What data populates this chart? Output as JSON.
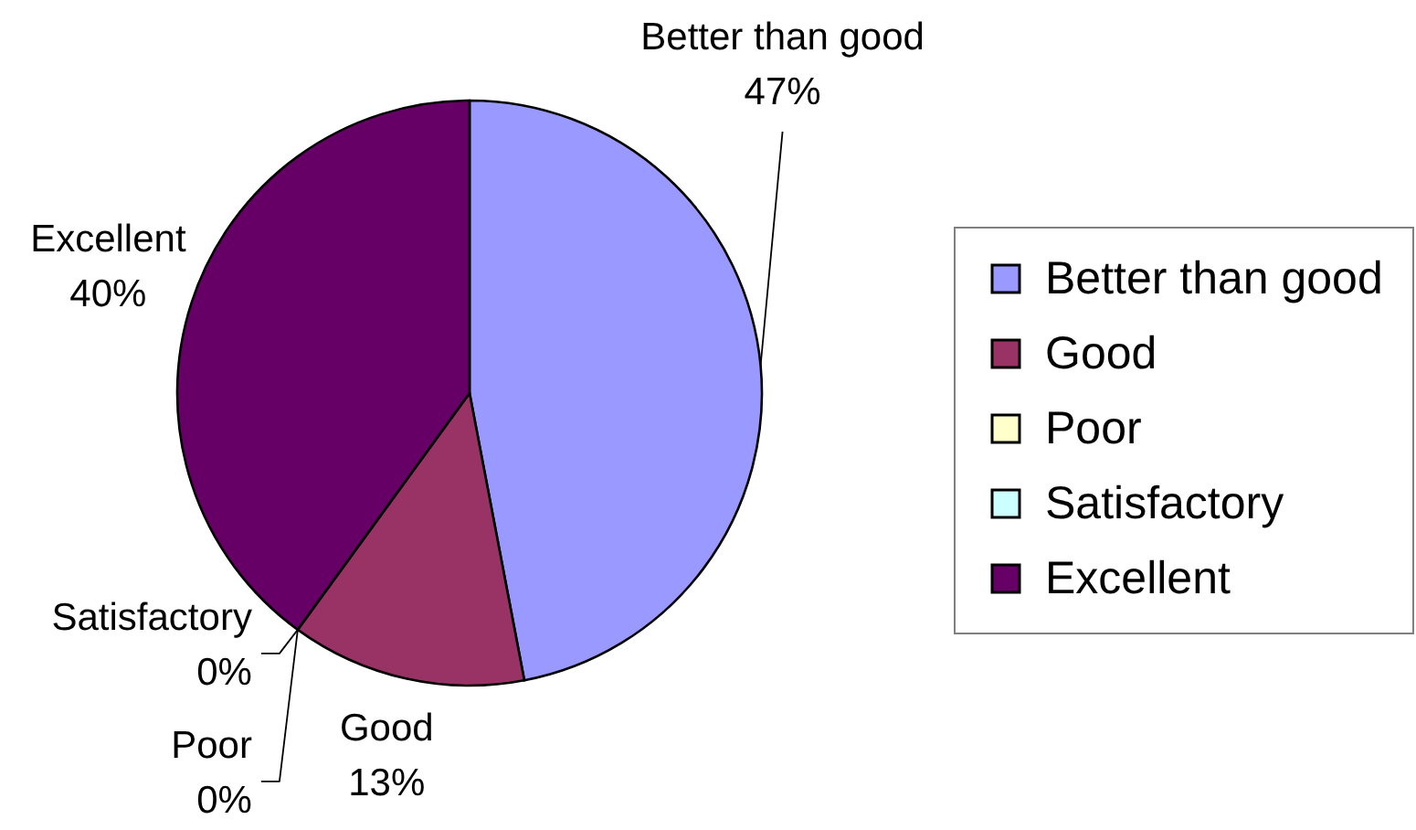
{
  "chart_data": {
    "type": "pie",
    "categories": [
      "Better than good",
      "Good",
      "Poor",
      "Satisfactory",
      "Excellent"
    ],
    "values": [
      47,
      13,
      0,
      0,
      40
    ],
    "colors": [
      "#9999ff",
      "#993366",
      "#ffffcc",
      "#ccffff",
      "#660066"
    ],
    "value_labels": [
      "47%",
      "13%",
      "0%",
      "0%",
      "40%"
    ],
    "legend": "right"
  }
}
